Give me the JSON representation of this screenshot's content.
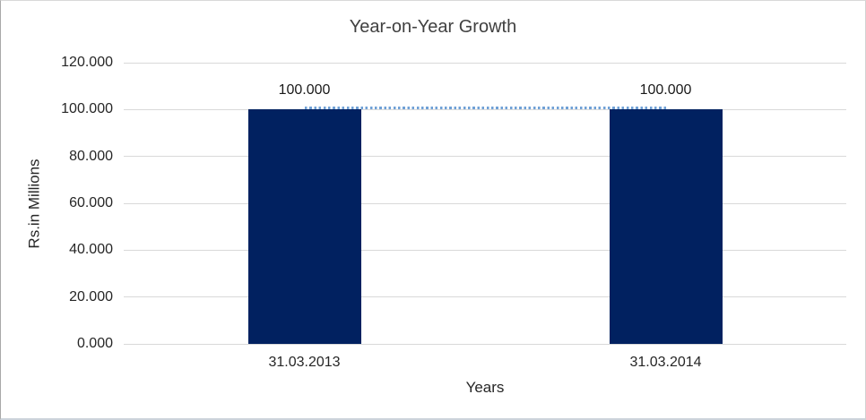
{
  "chart_data": {
    "type": "bar",
    "title": "Year-on-Year Growth",
    "xlabel": "Years",
    "ylabel": "Rs.in Millions",
    "categories": [
      "31.03.2013",
      "31.03.2014"
    ],
    "values": [
      100,
      100
    ],
    "data_labels": [
      "100.000",
      "100.000"
    ],
    "ylim": [
      0,
      120
    ],
    "ytick_interval": 20,
    "ytick_labels": [
      "0.000",
      "20.000",
      "40.000",
      "60.000",
      "80.000",
      "100.000",
      "120.000"
    ],
    "grid": true,
    "legend": false,
    "connector_line": {
      "style": "dotted",
      "at_value": 100,
      "from_category": 0,
      "to_category": 1,
      "color": "#6FA0D6"
    },
    "colors": {
      "bar": "#012160",
      "gridline": "#d9d9d9",
      "title_text": "#404040",
      "label_text": "#262626",
      "background": "#ffffff"
    }
  }
}
